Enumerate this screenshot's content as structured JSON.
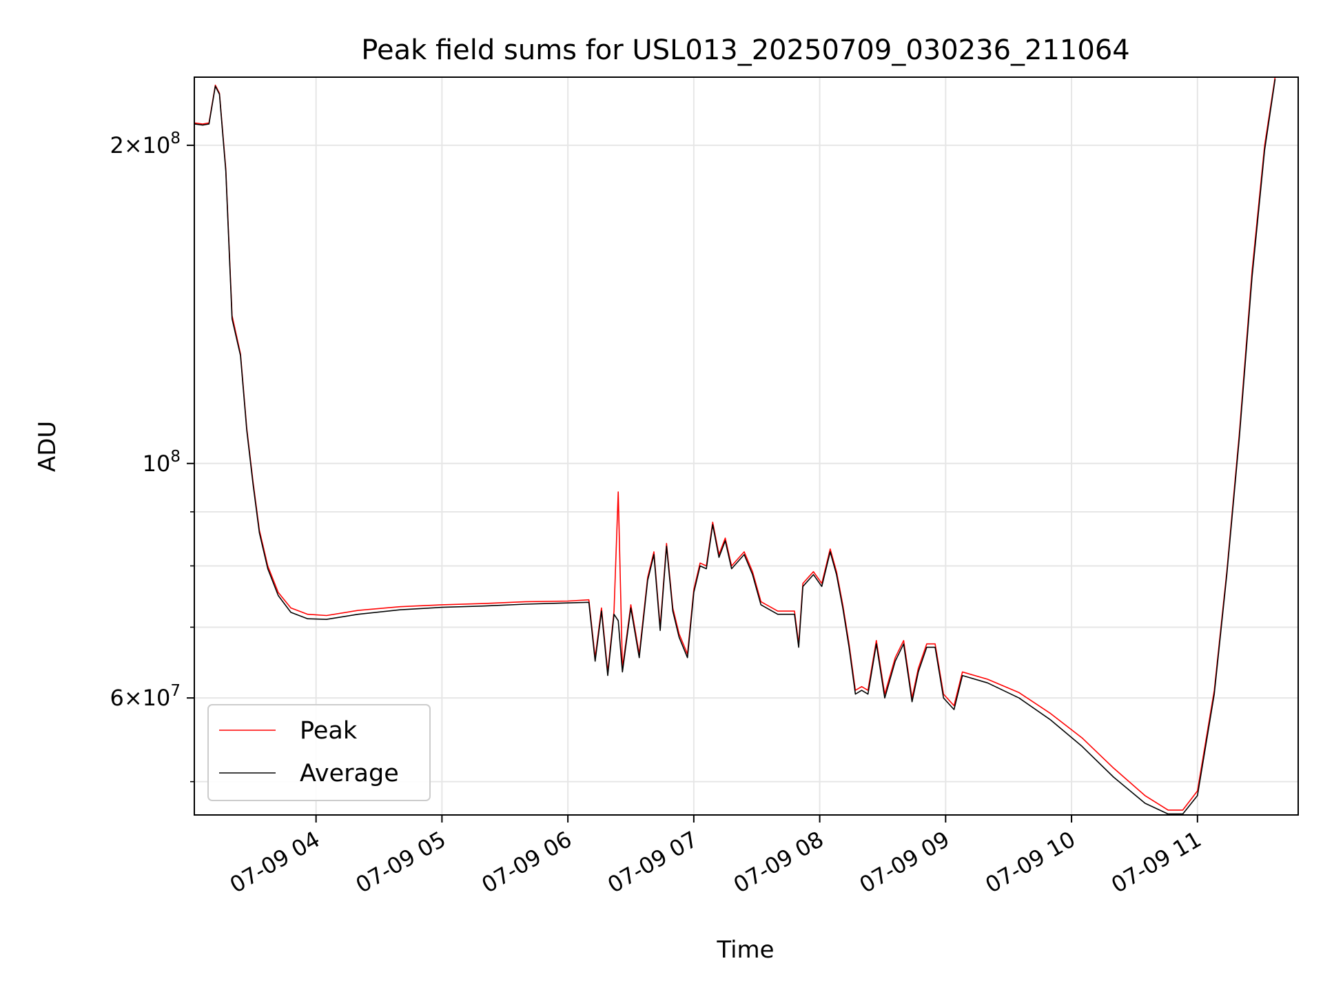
{
  "chart_data": {
    "type": "line",
    "title": "Peak field sums for USL013_20250709_030236_211064",
    "xlabel": "Time",
    "ylabel": "ADU",
    "yscale": "log",
    "ylim": [
      46500000,
      232000000
    ],
    "xlim": [
      "2025-07-09 03:02",
      "2025-07-09 11:48"
    ],
    "x_ticks": [
      {
        "value": "2025-07-09 04:00",
        "label": "07-09 04"
      },
      {
        "value": "2025-07-09 05:00",
        "label": "07-09 05"
      },
      {
        "value": "2025-07-09 06:00",
        "label": "07-09 06"
      },
      {
        "value": "2025-07-09 07:00",
        "label": "07-09 07"
      },
      {
        "value": "2025-07-09 08:00",
        "label": "07-09 08"
      },
      {
        "value": "2025-07-09 09:00",
        "label": "07-09 09"
      },
      {
        "value": "2025-07-09 10:00",
        "label": "07-09 10"
      },
      {
        "value": "2025-07-09 11:00",
        "label": "07-09 11"
      }
    ],
    "y_ticks": [
      {
        "value": 200000000,
        "base": "2×10",
        "exp": "8"
      },
      {
        "value": 100000000,
        "base": "10",
        "exp": "8"
      },
      {
        "value": 60000000,
        "base": "6×10",
        "exp": "7"
      }
    ],
    "y_minor_ticks": [
      50000000,
      70000000,
      80000000,
      90000000
    ],
    "grid": true,
    "legend_position": "lower-left",
    "series": [
      {
        "name": "Peak",
        "color": "#ff0000",
        "points": [
          [
            "2025-07-09 03:02",
            210000000
          ],
          [
            "2025-07-09 03:06",
            209500000
          ],
          [
            "2025-07-09 03:09",
            210000000
          ],
          [
            "2025-07-09 03:12",
            228000000
          ],
          [
            "2025-07-09 03:14",
            224000000
          ],
          [
            "2025-07-09 03:17",
            190000000
          ],
          [
            "2025-07-09 03:20",
            138000000
          ],
          [
            "2025-07-09 03:24",
            127000000
          ],
          [
            "2025-07-09 03:27",
            108000000
          ],
          [
            "2025-07-09 03:30",
            96000000
          ],
          [
            "2025-07-09 03:33",
            86500000
          ],
          [
            "2025-07-09 03:37",
            80000000
          ],
          [
            "2025-07-09 03:42",
            75500000
          ],
          [
            "2025-07-09 03:48",
            73000000
          ],
          [
            "2025-07-09 03:56",
            72000000
          ],
          [
            "2025-07-09 04:05",
            71800000
          ],
          [
            "2025-07-09 04:20",
            72600000
          ],
          [
            "2025-07-09 04:40",
            73200000
          ],
          [
            "2025-07-09 05:00",
            73500000
          ],
          [
            "2025-07-09 05:20",
            73700000
          ],
          [
            "2025-07-09 05:40",
            74000000
          ],
          [
            "2025-07-09 06:00",
            74100000
          ],
          [
            "2025-07-09 06:10",
            74300000
          ],
          [
            "2025-07-09 06:13",
            65500000
          ],
          [
            "2025-07-09 06:16",
            73000000
          ],
          [
            "2025-07-09 06:19",
            63500000
          ],
          [
            "2025-07-09 06:22",
            72500000
          ],
          [
            "2025-07-09 06:24",
            94000000
          ],
          [
            "2025-07-09 06:26",
            64000000
          ],
          [
            "2025-07-09 06:30",
            73500000
          ],
          [
            "2025-07-09 06:34",
            66000000
          ],
          [
            "2025-07-09 06:38",
            78000000
          ],
          [
            "2025-07-09 06:41",
            82500000
          ],
          [
            "2025-07-09 06:44",
            70000000
          ],
          [
            "2025-07-09 06:47",
            84000000
          ],
          [
            "2025-07-09 06:50",
            73000000
          ],
          [
            "2025-07-09 06:53",
            69000000
          ],
          [
            "2025-07-09 06:57",
            66000000
          ],
          [
            "2025-07-09 07:00",
            76000000
          ],
          [
            "2025-07-09 07:03",
            80500000
          ],
          [
            "2025-07-09 07:06",
            80000000
          ],
          [
            "2025-07-09 07:09",
            88000000
          ],
          [
            "2025-07-09 07:12",
            82000000
          ],
          [
            "2025-07-09 07:15",
            85000000
          ],
          [
            "2025-07-09 07:18",
            80000000
          ],
          [
            "2025-07-09 07:24",
            82500000
          ],
          [
            "2025-07-09 07:28",
            79000000
          ],
          [
            "2025-07-09 07:32",
            74000000
          ],
          [
            "2025-07-09 07:40",
            72500000
          ],
          [
            "2025-07-09 07:48",
            72500000
          ],
          [
            "2025-07-09 07:50",
            67500000
          ],
          [
            "2025-07-09 07:52",
            77000000
          ],
          [
            "2025-07-09 07:57",
            79000000
          ],
          [
            "2025-07-09 08:01",
            77000000
          ],
          [
            "2025-07-09 08:05",
            83000000
          ],
          [
            "2025-07-09 08:08",
            79000000
          ],
          [
            "2025-07-09 08:11",
            73500000
          ],
          [
            "2025-07-09 08:14",
            67500000
          ],
          [
            "2025-07-09 08:17",
            61000000
          ],
          [
            "2025-07-09 08:20",
            61500000
          ],
          [
            "2025-07-09 08:23",
            61000000
          ],
          [
            "2025-07-09 08:27",
            68000000
          ],
          [
            "2025-07-09 08:31",
            60500000
          ],
          [
            "2025-07-09 08:36",
            65500000
          ],
          [
            "2025-07-09 08:40",
            68000000
          ],
          [
            "2025-07-09 08:44",
            60000000
          ],
          [
            "2025-07-09 08:47",
            64000000
          ],
          [
            "2025-07-09 08:51",
            67500000
          ],
          [
            "2025-07-09 08:55",
            67500000
          ],
          [
            "2025-07-09 08:59",
            60500000
          ],
          [
            "2025-07-09 09:04",
            59000000
          ],
          [
            "2025-07-09 09:08",
            63500000
          ],
          [
            "2025-07-09 09:20",
            62500000
          ],
          [
            "2025-07-09 09:35",
            60700000
          ],
          [
            "2025-07-09 09:50",
            58000000
          ],
          [
            "2025-07-09 10:05",
            55000000
          ],
          [
            "2025-07-09 10:20",
            51500000
          ],
          [
            "2025-07-09 10:35",
            48500000
          ],
          [
            "2025-07-09 10:46",
            47000000
          ],
          [
            "2025-07-09 10:53",
            47000000
          ],
          [
            "2025-07-09 11:00",
            49000000
          ],
          [
            "2025-07-09 11:08",
            61000000
          ],
          [
            "2025-07-09 11:14",
            79000000
          ],
          [
            "2025-07-09 11:20",
            107000000
          ],
          [
            "2025-07-09 11:26",
            152000000
          ],
          [
            "2025-07-09 11:32",
            200000000
          ],
          [
            "2025-07-09 11:37",
            232000000
          ]
        ]
      },
      {
        "name": "Average",
        "color": "#000000",
        "points": [
          [
            "2025-07-09 03:02",
            209500000
          ],
          [
            "2025-07-09 03:06",
            209000000
          ],
          [
            "2025-07-09 03:09",
            209500000
          ],
          [
            "2025-07-09 03:12",
            227500000
          ],
          [
            "2025-07-09 03:14",
            223500000
          ],
          [
            "2025-07-09 03:17",
            189000000
          ],
          [
            "2025-07-09 03:20",
            137000000
          ],
          [
            "2025-07-09 03:24",
            126500000
          ],
          [
            "2025-07-09 03:27",
            107500000
          ],
          [
            "2025-07-09 03:30",
            95500000
          ],
          [
            "2025-07-09 03:33",
            86000000
          ],
          [
            "2025-07-09 03:37",
            79500000
          ],
          [
            "2025-07-09 03:42",
            75000000
          ],
          [
            "2025-07-09 03:48",
            72300000
          ],
          [
            "2025-07-09 03:56",
            71300000
          ],
          [
            "2025-07-09 04:05",
            71200000
          ],
          [
            "2025-07-09 04:20",
            72000000
          ],
          [
            "2025-07-09 04:40",
            72700000
          ],
          [
            "2025-07-09 05:00",
            73100000
          ],
          [
            "2025-07-09 05:20",
            73300000
          ],
          [
            "2025-07-09 05:40",
            73600000
          ],
          [
            "2025-07-09 06:00",
            73800000
          ],
          [
            "2025-07-09 06:10",
            73900000
          ],
          [
            "2025-07-09 06:13",
            65000000
          ],
          [
            "2025-07-09 06:16",
            72500000
          ],
          [
            "2025-07-09 06:19",
            63000000
          ],
          [
            "2025-07-09 06:22",
            72000000
          ],
          [
            "2025-07-09 06:24",
            71000000
          ],
          [
            "2025-07-09 06:26",
            63500000
          ],
          [
            "2025-07-09 06:30",
            73000000
          ],
          [
            "2025-07-09 06:34",
            65500000
          ],
          [
            "2025-07-09 06:38",
            77500000
          ],
          [
            "2025-07-09 06:41",
            82000000
          ],
          [
            "2025-07-09 06:44",
            69500000
          ],
          [
            "2025-07-09 06:47",
            83500000
          ],
          [
            "2025-07-09 06:50",
            72500000
          ],
          [
            "2025-07-09 06:53",
            68500000
          ],
          [
            "2025-07-09 06:57",
            65500000
          ],
          [
            "2025-07-09 07:00",
            75500000
          ],
          [
            "2025-07-09 07:03",
            80000000
          ],
          [
            "2025-07-09 07:06",
            79500000
          ],
          [
            "2025-07-09 07:09",
            87500000
          ],
          [
            "2025-07-09 07:12",
            81500000
          ],
          [
            "2025-07-09 07:15",
            84500000
          ],
          [
            "2025-07-09 07:18",
            79500000
          ],
          [
            "2025-07-09 07:24",
            82000000
          ],
          [
            "2025-07-09 07:28",
            78500000
          ],
          [
            "2025-07-09 07:32",
            73500000
          ],
          [
            "2025-07-09 07:40",
            72000000
          ],
          [
            "2025-07-09 07:48",
            72000000
          ],
          [
            "2025-07-09 07:50",
            67000000
          ],
          [
            "2025-07-09 07:52",
            76500000
          ],
          [
            "2025-07-09 07:57",
            78500000
          ],
          [
            "2025-07-09 08:01",
            76500000
          ],
          [
            "2025-07-09 08:05",
            82500000
          ],
          [
            "2025-07-09 08:08",
            78500000
          ],
          [
            "2025-07-09 08:11",
            73000000
          ],
          [
            "2025-07-09 08:14",
            67000000
          ],
          [
            "2025-07-09 08:17",
            60500000
          ],
          [
            "2025-07-09 08:20",
            61000000
          ],
          [
            "2025-07-09 08:23",
            60500000
          ],
          [
            "2025-07-09 08:27",
            67500000
          ],
          [
            "2025-07-09 08:31",
            60000000
          ],
          [
            "2025-07-09 08:36",
            65000000
          ],
          [
            "2025-07-09 08:40",
            67500000
          ],
          [
            "2025-07-09 08:44",
            59500000
          ],
          [
            "2025-07-09 08:47",
            63500000
          ],
          [
            "2025-07-09 08:51",
            67000000
          ],
          [
            "2025-07-09 08:55",
            67000000
          ],
          [
            "2025-07-09 08:59",
            60000000
          ],
          [
            "2025-07-09 09:04",
            58500000
          ],
          [
            "2025-07-09 09:08",
            63000000
          ],
          [
            "2025-07-09 09:20",
            62000000
          ],
          [
            "2025-07-09 09:35",
            60000000
          ],
          [
            "2025-07-09 09:50",
            57200000
          ],
          [
            "2025-07-09 10:05",
            54000000
          ],
          [
            "2025-07-09 10:20",
            50500000
          ],
          [
            "2025-07-09 10:35",
            47700000
          ],
          [
            "2025-07-09 10:46",
            46600000
          ],
          [
            "2025-07-09 10:53",
            46600000
          ],
          [
            "2025-07-09 11:00",
            48500000
          ],
          [
            "2025-07-09 11:08",
            60500000
          ],
          [
            "2025-07-09 11:14",
            78500000
          ],
          [
            "2025-07-09 11:20",
            106000000
          ],
          [
            "2025-07-09 11:26",
            150000000
          ],
          [
            "2025-07-09 11:32",
            198000000
          ],
          [
            "2025-07-09 11:37",
            231000000
          ]
        ]
      }
    ]
  }
}
